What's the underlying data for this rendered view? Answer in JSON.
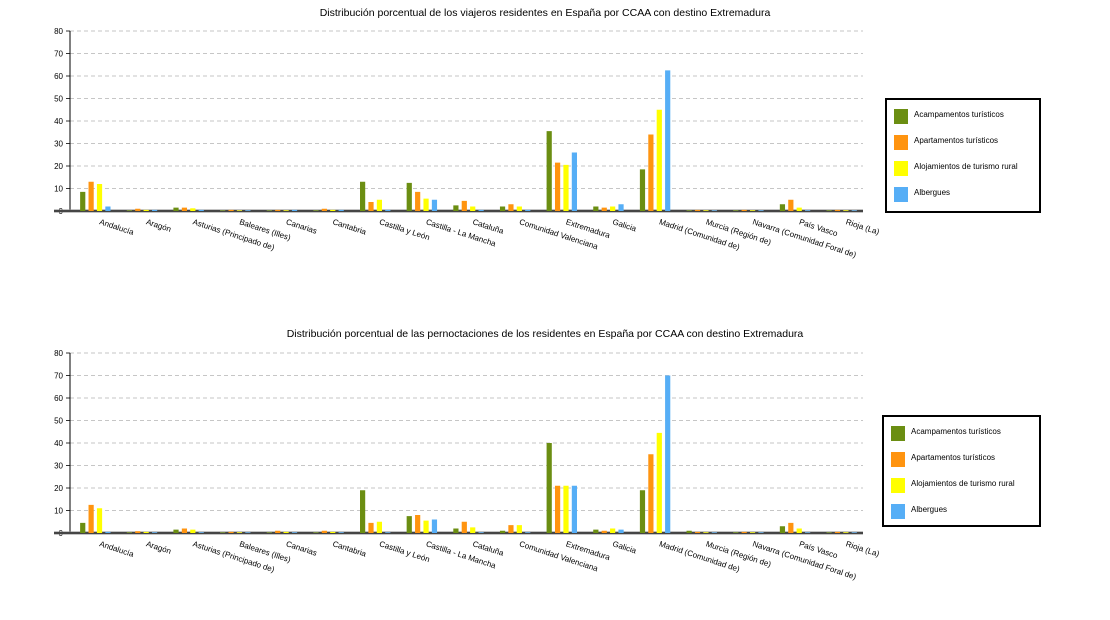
{
  "colors": {
    "acampamentos": "#6b8e12",
    "apartamentos": "#ff9410",
    "alojamientos": "#ffff00",
    "albergues": "#56aef6",
    "grid": "#b4b4b4",
    "axis": "#000000"
  },
  "chart_data": [
    {
      "type": "bar",
      "title": "Distribución porcentual de los viajeros residentes en España por CCAA con destino Extremadura",
      "ylim": [
        0,
        80
      ],
      "yticks": [
        0,
        10,
        20,
        30,
        40,
        50,
        60,
        70,
        80
      ],
      "grid": true,
      "legend_position": "right",
      "categories": [
        "Andalucía",
        "Aragón",
        "Asturias (Principado de)",
        "Baleares (Illes)",
        "Canarias",
        "Cantabria",
        "Castilla y León",
        "Castilla - La Mancha",
        "Cataluña",
        "Comunidad Valenciana",
        "Extremadura",
        "Galicia",
        "Madrid (Comunidad de)",
        "Murcia (Región de)",
        "Navarra (Comunidad Foral de)",
        "País Vasco",
        "Rioja (La)"
      ],
      "series": [
        {
          "name": "Acampamentos turísticos",
          "color_key": "acampamentos",
          "values": [
            8.5,
            0.3,
            1.5,
            0.2,
            0.2,
            0.3,
            13,
            12.5,
            2.5,
            2,
            35.5,
            2,
            18.5,
            0.3,
            0.3,
            3,
            0.3
          ]
        },
        {
          "name": "Apartamentos turísticos",
          "color_key": "apartamentos",
          "values": [
            13,
            1,
            1.5,
            0.5,
            0.5,
            1,
            4,
            8.5,
            4.5,
            3,
            21.5,
            1.5,
            34,
            0.5,
            0.5,
            5,
            0.5
          ]
        },
        {
          "name": "Alojamientos de turismo rural",
          "color_key": "alojamientos",
          "values": [
            12,
            0.5,
            1.2,
            0.2,
            0.3,
            0.5,
            5,
            5.5,
            2,
            2,
            20.5,
            2,
            45,
            0.3,
            0.3,
            1.5,
            0.3
          ]
        },
        {
          "name": "Albergues",
          "color_key": "albergues",
          "values": [
            2,
            0.5,
            0.5,
            0.3,
            0.5,
            0.5,
            0.5,
            5,
            0.5,
            0.5,
            26,
            3,
            62.5,
            0.2,
            0.3,
            0.3,
            0.2
          ]
        }
      ]
    },
    {
      "type": "bar",
      "title": "Distribución porcentual de las pernoctaciones de los residentes en España por CCAA con destino Extremadura",
      "ylim": [
        0,
        80
      ],
      "yticks": [
        0,
        10,
        20,
        30,
        40,
        50,
        60,
        70,
        80
      ],
      "grid": true,
      "legend_position": "right",
      "categories": [
        "Andalucía",
        "Aragón",
        "Asturias (Principado de)",
        "Baleares (Illes)",
        "Canarias",
        "Cantabria",
        "Castilla y León",
        "Castilla - La Mancha",
        "Cataluña",
        "Comunidad Valenciana",
        "Extremadura",
        "Galicia",
        "Madrid (Comunidad de)",
        "Murcia (Región de)",
        "Navarra (Comunidad Foral de)",
        "País Vasco",
        "Rioja (La)"
      ],
      "series": [
        {
          "name": "Acampamentos turísticos",
          "color_key": "acampamentos",
          "values": [
            4.5,
            0.3,
            1.5,
            0.2,
            0.2,
            0.2,
            19,
            7.5,
            2,
            1,
            40,
            1.5,
            19,
            1,
            0.3,
            3,
            0.2
          ]
        },
        {
          "name": "Apartamentos turísticos",
          "color_key": "apartamentos",
          "values": [
            12.5,
            0.8,
            2,
            0.5,
            1,
            1,
            4.5,
            8,
            5,
            3.5,
            21,
            1,
            35,
            0.5,
            0.5,
            4.5,
            0.5
          ]
        },
        {
          "name": "Alojamientos de turismo rural",
          "color_key": "alojamientos",
          "values": [
            11,
            0.5,
            1.5,
            0.3,
            0.5,
            0.5,
            5,
            5.5,
            2.5,
            3.5,
            21,
            2,
            44.5,
            0.3,
            0.3,
            2,
            0.3
          ]
        },
        {
          "name": "Albergues",
          "color_key": "albergues",
          "values": [
            0.5,
            0.3,
            0.3,
            0.2,
            0.3,
            0.3,
            0.3,
            6,
            0.3,
            0.3,
            21,
            1.5,
            70,
            0.2,
            0.2,
            0.2,
            0.2
          ]
        }
      ]
    }
  ]
}
